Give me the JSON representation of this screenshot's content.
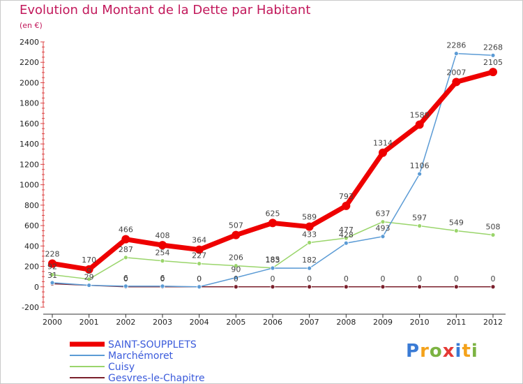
{
  "title": "Evolution du Montant de la Dette par Habitant",
  "subtitle": "(en €)",
  "logo": [
    "P",
    "r",
    "o",
    "x",
    "i",
    "t",
    "i"
  ],
  "logo_colors": [
    "#3a7bd5",
    "#f4a21a",
    "#7cb342",
    "#e53935",
    "#3a7bd5",
    "#f4a21a",
    "#7cb342"
  ],
  "chart_data": {
    "type": "line",
    "x": [
      "2000",
      "2001",
      "2002",
      "2003",
      "2004",
      "2005",
      "2006",
      "2007",
      "2008",
      "2009",
      "2010",
      "2011",
      "2012"
    ],
    "ylim": [
      -200,
      2400
    ],
    "yticks": [
      "-200",
      "0",
      "200",
      "400",
      "600",
      "800",
      "1000",
      "1200",
      "1400",
      "1600",
      "1800",
      "2000",
      "2200",
      "2400"
    ],
    "grid": false,
    "legend_position": "bottom-left",
    "series": [
      {
        "name": "Gesvres-le-Chapitre",
        "color": "#7a1f2b",
        "values": [
          30,
          15,
          0,
          0,
          0,
          0,
          0,
          0,
          0,
          0,
          0,
          0,
          0
        ],
        "labels": [
          "",
          "",
          "0",
          "0",
          "0",
          "0",
          "0",
          "0",
          "0",
          "0",
          "0",
          "0",
          "0"
        ]
      },
      {
        "name": "Cuisy",
        "color": "#9ad56b",
        "values": [
          118,
          75,
          287,
          254,
          227,
          206,
          185,
          433,
          477,
          637,
          597,
          549,
          508
        ],
        "labels": [
          "",
          "",
          "287",
          "254",
          "227",
          "206",
          "185",
          "433",
          "477",
          "637",
          "597",
          "549",
          "508"
        ]
      },
      {
        "name": "Marchémoret",
        "color": "#5b9bd5",
        "values": [
          40,
          15,
          6,
          6,
          0,
          90,
          183,
          182,
          428,
          493,
          1106,
          2286,
          2268
        ],
        "labels": [
          "",
          "",
          "6",
          "6",
          "0",
          "90",
          "183",
          "182",
          "428",
          "493",
          "1106",
          "2286",
          "2268"
        ]
      },
      {
        "name": "SAINT-SOUPPLETS",
        "color": "#ee0000",
        "values": [
          228,
          170,
          466,
          408,
          364,
          507,
          625,
          589,
          793,
          1314,
          1589,
          2007,
          2105
        ],
        "labels": [
          "228",
          "170",
          "466",
          "408",
          "364",
          "507",
          "625",
          "589",
          "793",
          "1314",
          "1589",
          "2007",
          "2105"
        ]
      }
    ],
    "crowded_labels": [
      "31",
      "92",
      "9",
      "29"
    ],
    "legend_order": [
      "SAINT-SOUPPLETS",
      "Marchémoret",
      "Cuisy",
      "Gesvres-le-Chapitre"
    ]
  }
}
